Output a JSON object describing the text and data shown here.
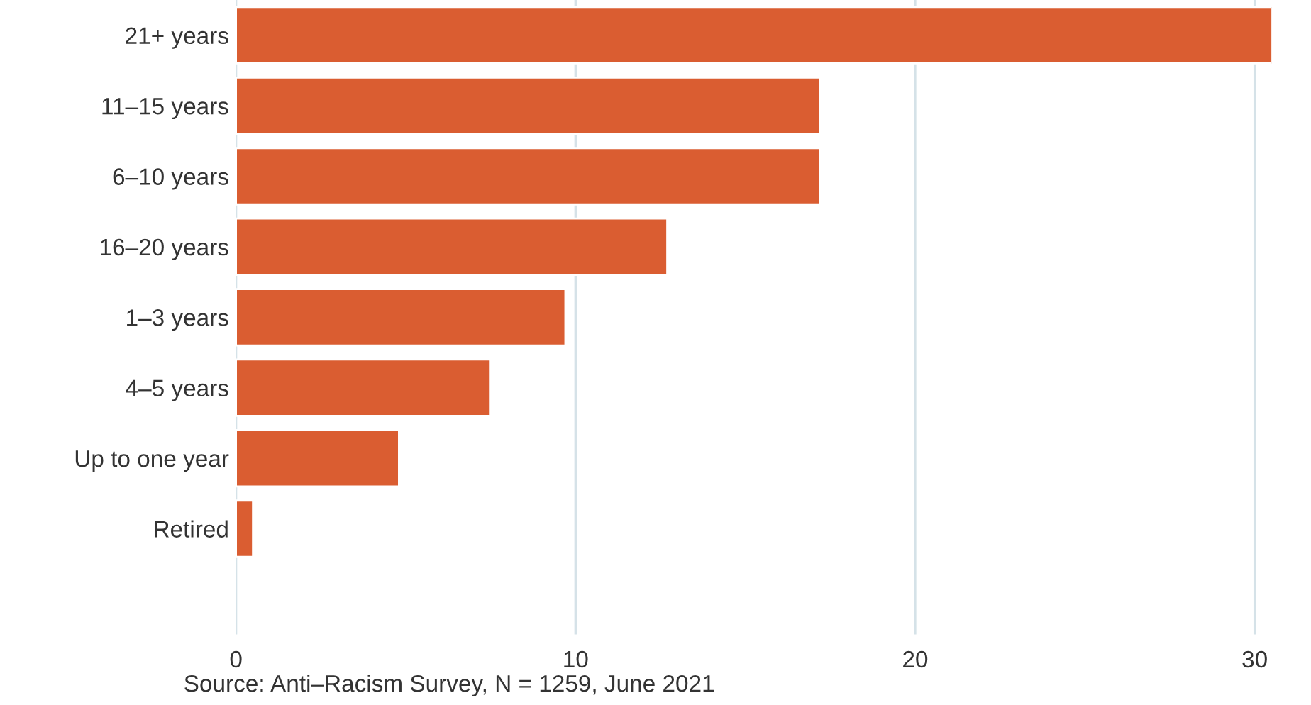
{
  "chart_data": {
    "type": "bar",
    "orientation": "horizontal",
    "categories": [
      "21+ years",
      "11–15 years",
      "6–10 years",
      "16–20 years",
      "1–3 years",
      "4–5 years",
      "Up to one year",
      "Retired"
    ],
    "values": [
      30.5,
      17.2,
      17.2,
      12.7,
      9.7,
      7.5,
      4.8,
      0.5
    ],
    "color": "#da5d31",
    "xlim": [
      0,
      30.5
    ],
    "xticks": [
      0,
      10,
      20,
      30
    ],
    "grid": "x",
    "annotations": [
      "Source: Anti–Racism Survey, N = 1259, June 2021"
    ]
  }
}
